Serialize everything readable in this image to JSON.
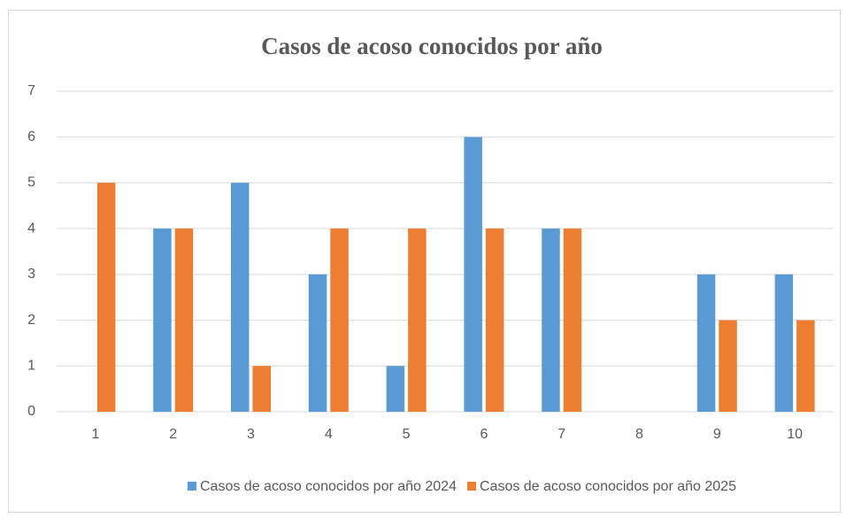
{
  "chart_data": {
    "type": "bar",
    "title": "Casos de acoso conocidos por año",
    "categories": [
      "1",
      "2",
      "3",
      "4",
      "5",
      "6",
      "7",
      "8",
      "9",
      "10"
    ],
    "series": [
      {
        "name": "Casos de acoso conocidos por año 2024",
        "color": "#5b9bd5",
        "values": [
          0,
          4,
          5,
          3,
          1,
          6,
          4,
          0,
          3,
          3
        ]
      },
      {
        "name": "Casos de acoso conocidos por año 2025",
        "color": "#ed7d31",
        "values": [
          5,
          4,
          1,
          4,
          4,
          4,
          4,
          0,
          2,
          2
        ]
      }
    ],
    "ylim": [
      0,
      7
    ],
    "yticks": [
      0,
      1,
      2,
      3,
      4,
      5,
      6,
      7
    ],
    "grid": true,
    "legend": "bottom"
  }
}
